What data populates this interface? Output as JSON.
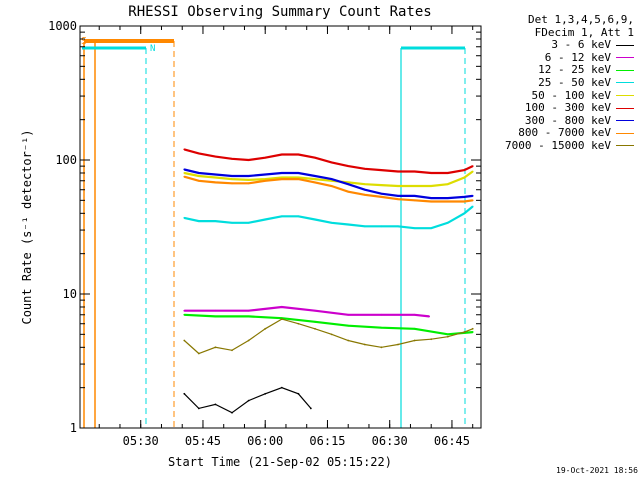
{
  "chart_data": {
    "type": "line",
    "title": "RHESSI Observing Summary Count Rates",
    "xlabel": "Start Time (21-Sep-02 05:15:22)",
    "ylabel": "Count Rate (s⁻¹ detector⁻¹)",
    "y_scale": "log",
    "ylim": [
      1,
      1000
    ],
    "xlim": [
      "05:15:22",
      "06:52:00"
    ],
    "x_ticks": [
      "05:30",
      "05:45",
      "06:00",
      "06:15",
      "06:30",
      "06:45"
    ],
    "y_ticks": [
      "1",
      "10",
      "100",
      "1000"
    ],
    "legend_header": [
      "Det 1,3,4,5,6,9,",
      "FDecim 1, Att 1"
    ],
    "legend_position": "right",
    "flag_labels": [
      "S",
      "N"
    ],
    "series": [
      {
        "name": "3 - 6 keV",
        "color": "#000000",
        "x": [
          "05:40:30",
          "05:44:00",
          "05:48:00",
          "05:52:00",
          "05:56:00",
          "06:00:00",
          "06:04:00",
          "06:08:00",
          "06:11:00"
        ],
        "y": [
          1.8,
          1.4,
          1.5,
          1.3,
          1.6,
          1.8,
          2.0,
          1.8,
          1.4
        ]
      },
      {
        "name": "6 - 12 keV",
        "color": "#cc00cc",
        "x": [
          "05:40:30",
          "05:48:00",
          "05:56:00",
          "06:04:00",
          "06:12:00",
          "06:20:00",
          "06:28:00",
          "06:36:00",
          "06:39:30"
        ],
        "y": [
          7.5,
          7.5,
          7.5,
          8.0,
          7.5,
          7.0,
          7.0,
          7.0,
          6.8
        ]
      },
      {
        "name": "12 - 25 keV",
        "color": "#00ee00",
        "x": [
          "05:40:30",
          "05:48:00",
          "05:56:00",
          "06:04:00",
          "06:12:00",
          "06:20:00",
          "06:28:00",
          "06:36:00",
          "06:44:00",
          "06:50:00"
        ],
        "y": [
          7.0,
          6.8,
          6.8,
          6.6,
          6.2,
          5.8,
          5.6,
          5.5,
          5.0,
          5.2
        ]
      },
      {
        "name": "25 - 50 keV",
        "color": "#00dddd",
        "x": [
          "05:40:30",
          "05:44:00",
          "05:48:00",
          "05:52:00",
          "05:56:00",
          "06:00:00",
          "06:04:00",
          "06:08:00",
          "06:12:00",
          "06:16:00",
          "06:20:00",
          "06:24:00",
          "06:28:00",
          "06:32:00",
          "06:36:00",
          "06:40:00",
          "06:44:00",
          "06:48:00",
          "06:50:00"
        ],
        "y": [
          37,
          35,
          35,
          34,
          34,
          36,
          38,
          38,
          36,
          34,
          33,
          32,
          32,
          32,
          31,
          31,
          34,
          40,
          45
        ]
      },
      {
        "name": "50 - 100 keV",
        "color": "#dddd00",
        "x": [
          "05:40:30",
          "05:44:00",
          "05:48:00",
          "05:52:00",
          "05:56:00",
          "06:00:00",
          "06:04:00",
          "06:08:00",
          "06:12:00",
          "06:16:00",
          "06:20:00",
          "06:24:00",
          "06:28:00",
          "06:32:00",
          "06:36:00",
          "06:40:00",
          "06:44:00",
          "06:48:00",
          "06:50:00"
        ],
        "y": [
          80,
          76,
          74,
          72,
          71,
          72,
          74,
          74,
          72,
          70,
          68,
          66,
          65,
          64,
          64,
          64,
          66,
          74,
          82
        ]
      },
      {
        "name": "100 - 300 keV",
        "color": "#dd0000",
        "x": [
          "05:40:30",
          "05:44:00",
          "05:48:00",
          "05:52:00",
          "05:56:00",
          "06:00:00",
          "06:04:00",
          "06:08:00",
          "06:12:00",
          "06:16:00",
          "06:20:00",
          "06:24:00",
          "06:28:00",
          "06:32:00",
          "06:36:00",
          "06:40:00",
          "06:44:00",
          "06:48:00",
          "06:50:00"
        ],
        "y": [
          120,
          112,
          106,
          102,
          100,
          104,
          110,
          110,
          104,
          96,
          90,
          86,
          84,
          82,
          82,
          80,
          80,
          84,
          90
        ]
      },
      {
        "name": "300 - 800 keV",
        "color": "#0000dd",
        "x": [
          "05:40:30",
          "05:44:00",
          "05:48:00",
          "05:52:00",
          "05:56:00",
          "06:00:00",
          "06:04:00",
          "06:08:00",
          "06:12:00",
          "06:16:00",
          "06:20:00",
          "06:24:00",
          "06:28:00",
          "06:32:00",
          "06:36:00",
          "06:40:00",
          "06:44:00",
          "06:48:00",
          "06:50:00"
        ],
        "y": [
          85,
          80,
          78,
          76,
          76,
          78,
          80,
          80,
          76,
          72,
          66,
          60,
          56,
          54,
          54,
          52,
          52,
          53,
          54
        ]
      },
      {
        "name": "800 - 7000 keV",
        "color": "#ff8800",
        "x": [
          "05:40:30",
          "05:44:00",
          "05:48:00",
          "05:52:00",
          "05:56:00",
          "06:00:00",
          "06:04:00",
          "06:08:00",
          "06:12:00",
          "06:16:00",
          "06:20:00",
          "06:24:00",
          "06:28:00",
          "06:32:00",
          "06:36:00",
          "06:40:00",
          "06:44:00",
          "06:48:00",
          "06:50:00"
        ],
        "y": [
          75,
          70,
          68,
          67,
          67,
          70,
          72,
          72,
          68,
          64,
          58,
          55,
          53,
          51,
          50,
          49,
          49,
          49,
          50
        ]
      },
      {
        "name": "7000 - 15000 keV",
        "color": "#887700",
        "x": [
          "05:40:30",
          "05:44:00",
          "05:48:00",
          "05:52:00",
          "05:56:00",
          "06:00:00",
          "06:04:00",
          "06:08:00",
          "06:12:00",
          "06:16:00",
          "06:20:00",
          "06:24:00",
          "06:28:00",
          "06:32:00",
          "06:36:00",
          "06:40:00",
          "06:44:00",
          "06:48:00",
          "06:50:00"
        ],
        "y": [
          4.5,
          3.6,
          4.0,
          3.8,
          4.5,
          5.5,
          6.5,
          6.0,
          5.5,
          5.0,
          4.5,
          4.2,
          4.0,
          4.2,
          4.5,
          4.6,
          4.8,
          5.2,
          5.5
        ]
      }
    ]
  },
  "timestamp": "19-Oct-2021 18:56"
}
